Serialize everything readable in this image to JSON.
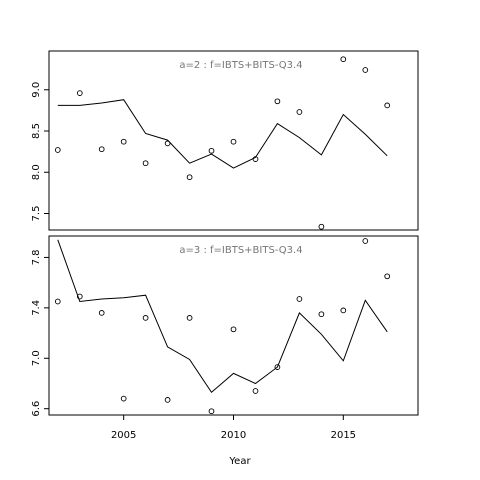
{
  "chart_data": {
    "type": "line",
    "xlabel": "Year",
    "x_range": [
      2001.6,
      2018.4
    ],
    "x_ticks": [
      2005,
      2010,
      2015
    ],
    "x_tick_labels": [
      "2005",
      "2010",
      "2015"
    ],
    "x": [
      2002,
      2003,
      2004,
      2005,
      2006,
      2007,
      2008,
      2009,
      2010,
      2011,
      2012,
      2013,
      2014,
      2015,
      2016,
      2017
    ],
    "panels": [
      {
        "title": "a=2  :  f=IBTS+BITS-Q3.4",
        "ylim": [
          7.3,
          9.47
        ],
        "y_ticks": [
          7.5,
          8.0,
          8.5,
          9.0
        ],
        "y_tick_labels": [
          "7.5",
          "8.0",
          "8.5",
          "9.0"
        ],
        "series": [
          {
            "kind": "line",
            "values": [
              8.81,
              8.81,
              8.84,
              8.88,
              8.47,
              8.39,
              8.11,
              8.22,
              8.05,
              8.18,
              8.59,
              8.42,
              8.21,
              8.7,
              8.46,
              8.2
            ]
          },
          {
            "kind": "points",
            "values": [
              8.27,
              8.96,
              8.28,
              8.37,
              8.11,
              8.35,
              7.94,
              8.26,
              8.37,
              8.16,
              8.86,
              8.73,
              7.34,
              9.37,
              9.24,
              8.81
            ]
          }
        ]
      },
      {
        "title": "a=3  :  f=IBTS+BITS-Q3.4",
        "ylim": [
          6.55,
          7.97
        ],
        "y_ticks": [
          6.6,
          7.0,
          7.4,
          7.8
        ],
        "y_tick_labels": [
          "6.6",
          "7.0",
          "7.4",
          "7.8"
        ],
        "series": [
          {
            "kind": "line",
            "values": [
              7.94,
              7.45,
              7.47,
              7.48,
              7.5,
              7.09,
              6.99,
              6.73,
              6.88,
              6.8,
              6.93,
              7.36,
              7.19,
              6.98,
              7.46,
              7.21
            ]
          },
          {
            "kind": "points",
            "values": [
              7.45,
              7.49,
              7.36,
              6.68,
              7.32,
              6.67,
              7.32,
              6.58,
              7.23,
              6.74,
              6.93,
              7.47,
              7.35,
              7.38,
              7.93,
              7.65
            ]
          }
        ]
      }
    ]
  }
}
